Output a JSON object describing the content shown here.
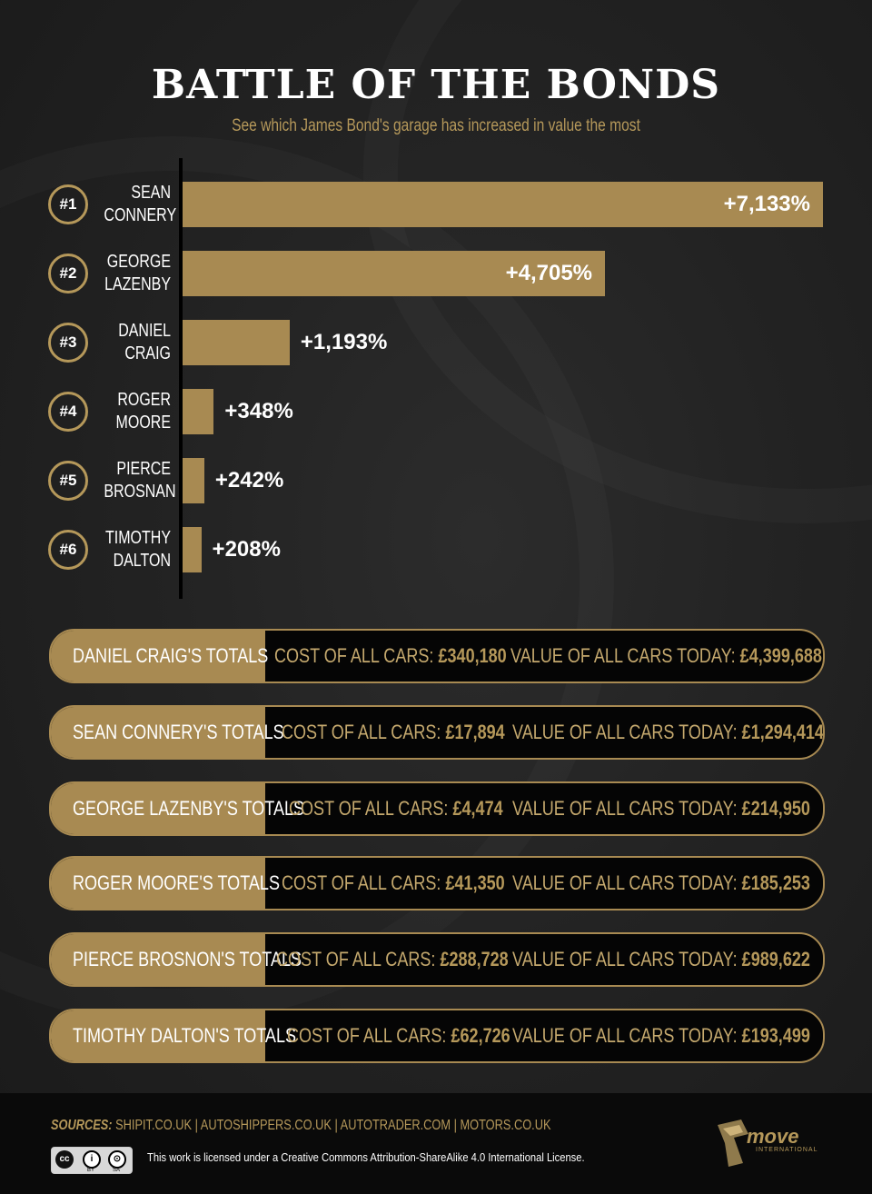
{
  "title": "BATTLE OF THE BONDS",
  "subtitle": "See which James Bond's garage has increased in value the most",
  "chart_data": {
    "type": "bar",
    "orientation": "horizontal",
    "title": "BATTLE OF THE BONDS",
    "subtitle": "See which James Bond's garage has increased in value the most",
    "ranks": [
      "#1",
      "#2",
      "#3",
      "#4",
      "#5",
      "#6"
    ],
    "categories": [
      [
        "SEAN",
        "CONNERY"
      ],
      [
        "GEORGE",
        "LAZENBY"
      ],
      [
        "DANIEL",
        "CRAIG"
      ],
      [
        "ROGER",
        "MOORE"
      ],
      [
        "PIERCE",
        "BROSNAN"
      ],
      [
        "TIMOTHY",
        "DALTON"
      ]
    ],
    "values": [
      7133,
      4705,
      1193,
      348,
      242,
      208
    ],
    "value_labels": [
      "+7,133%",
      "+4,705%",
      "+1,193%",
      "+348%",
      "+242%",
      "+208%"
    ],
    "xlim": [
      0,
      7133
    ],
    "grid": false,
    "bar_color": "#a88a52"
  },
  "totals": [
    {
      "label": "DANIEL CRAIG'S TOTALS",
      "cost_label": "COST OF ALL CARS:",
      "cost": "£340,180",
      "value_label": "VALUE OF ALL CARS TODAY:",
      "value": "£4,399,688"
    },
    {
      "label": "SEAN CONNERY'S TOTALS",
      "cost_label": "COST OF ALL CARS:",
      "cost": "£17,894",
      "value_label": "VALUE OF ALL CARS TODAY:",
      "value": "£1,294,414"
    },
    {
      "label": "GEORGE LAZENBY'S TOTALS",
      "cost_label": "COST OF ALL CARS:",
      "cost": "£4,474",
      "value_label": "VALUE OF ALL CARS TODAY:",
      "value": "£214,950"
    },
    {
      "label": "ROGER MOORE'S TOTALS",
      "cost_label": "COST OF ALL CARS:",
      "cost": "£41,350",
      "value_label": "VALUE OF ALL CARS TODAY:",
      "value": "£185,253"
    },
    {
      "label": "PIERCE BROSNON'S TOTALS",
      "cost_label": "COST OF ALL CARS:",
      "cost": "£288,728",
      "value_label": "VALUE OF ALL CARS TODAY:",
      "value": "£989,622"
    },
    {
      "label": "TIMOTHY DALTON'S TOTALS",
      "cost_label": "COST OF ALL CARS:",
      "cost": "£62,726",
      "value_label": "VALUE OF ALL CARS TODAY:",
      "value": "£193,499"
    }
  ],
  "footer": {
    "sources_label": "SOURCES:",
    "sources": "SHIPIT.CO.UK | AUTOSHIPPERS.CO.UK | AUTOTRADER.COM | MOTORS.CO.UK",
    "license": "This work is licensed under a Creative Commons Attribution-ShareAlike 4.0 International License.",
    "cc_badge": [
      "cc",
      "i",
      "⊙",
      "BY",
      "SA"
    ],
    "logo_text": "move",
    "logo_subtext": "INTERNATIONAL"
  },
  "colors": {
    "gold": "#a88a52",
    "gold_text": "#b5985a",
    "background": "#222222",
    "footer": "#0a0a0a"
  }
}
